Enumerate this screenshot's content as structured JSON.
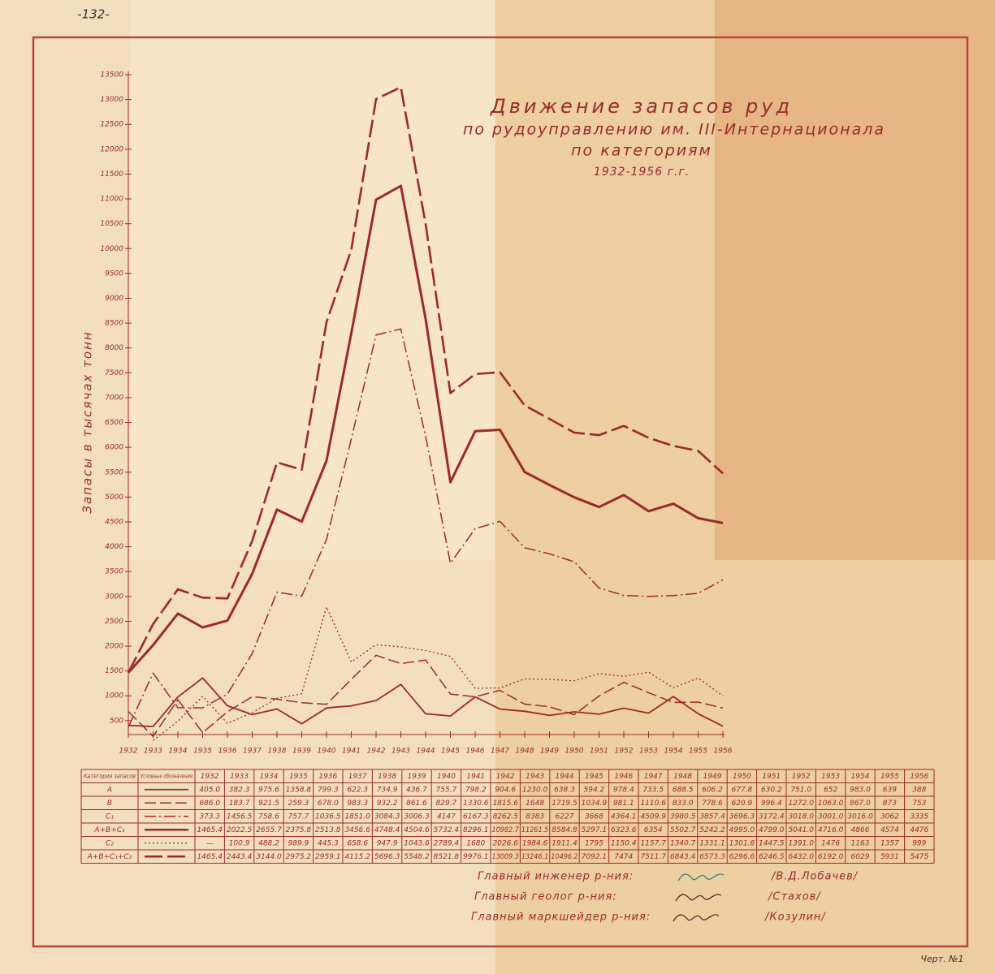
{
  "page_number": "-132-",
  "sheet": "Черт. №1",
  "chart_data": {
    "type": "line",
    "title": "Движение запасов руд",
    "subtitle": [
      "по рудоуправлению им. III-Интернационала",
      "по категориям",
      "1932-1956 г.г."
    ],
    "ylabel": "Запасы в тысячах тонн",
    "x": [
      "1932",
      "1933",
      "1934",
      "1935",
      "1936",
      "1937",
      "1938",
      "1939",
      "1940",
      "1941",
      "1942",
      "1943",
      "1944",
      "1945",
      "1946",
      "1947",
      "1948",
      "1949",
      "1950",
      "1951",
      "1952",
      "1953",
      "1954",
      "1955",
      "1956"
    ],
    "ylim": [
      220,
      13500
    ],
    "yticks": [
      500,
      1000,
      1500,
      2000,
      2500,
      3000,
      3500,
      4000,
      4500,
      5000,
      5500,
      6000,
      6500,
      7000,
      7500,
      8000,
      8500,
      9000,
      9500,
      10000,
      10500,
      11000,
      11500,
      12000,
      12500,
      13000,
      13500
    ],
    "series": [
      {
        "name": "A",
        "color": "#9b2a2a",
        "dash": "none",
        "width": 1.8,
        "values": [
          405.0,
          382.3,
          975.6,
          1358.8,
          799.3,
          622.3,
          734.9,
          436.7,
          755.7,
          798.2,
          904.6,
          1230.0,
          638.3,
          594.2,
          978.4,
          733.5,
          688.5,
          606.2,
          677.8,
          630.2,
          751.0,
          652,
          983.0,
          639,
          388
        ],
        "value_labels": [
          "405.0",
          "382.3",
          "975.6",
          "1358.8",
          "799.3",
          "622.3",
          "734.9",
          "436.7",
          "755.7",
          "798.2",
          "904.6",
          "1230.0",
          "638.3",
          "594.2",
          "978.4",
          "733.5",
          "688.5",
          "606.2",
          "677.8",
          "630.2",
          "751.0",
          "652",
          "983.0",
          "639",
          "388"
        ]
      },
      {
        "name": "B",
        "color": "#9b2a2a",
        "dash": "14 5",
        "width": 1.5,
        "values": [
          686.0,
          183.7,
          921.5,
          259.3,
          678.0,
          983.3,
          932.2,
          861.6,
          829.7,
          1330.6,
          1815.6,
          1648,
          1719.5,
          1034.9,
          981.1,
          1110.6,
          833.0,
          778.6,
          620.9,
          996.4,
          1272.0,
          1063.0,
          867.0,
          873,
          753
        ],
        "value_labels": [
          "686.0",
          "183.7",
          "921.5",
          "259.3",
          "678.0",
          "983.3",
          "932.2",
          "861.6",
          "829.7",
          "1330.6",
          "1815.6",
          "1648",
          "1719.5",
          "1034.9",
          "981.1",
          "1110.6",
          "833.0",
          "778.6",
          "620.9",
          "996.4",
          "1272.0",
          "1063.0",
          "867.0",
          "873",
          "753"
        ]
      },
      {
        "name": "C₁",
        "color": "#9b2a2a",
        "dash": "14 4 2 4",
        "width": 1.5,
        "values": [
          373.3,
          1456.5,
          758.6,
          757.7,
          1036.5,
          1851.0,
          3084.3,
          3006.3,
          4147,
          6167.3,
          8262.5,
          8383,
          6227,
          3668,
          4364.1,
          4509.9,
          3980.5,
          3857.4,
          3696.3,
          3172.4,
          3018.0,
          3001.0,
          3016.0,
          3062,
          3335
        ],
        "value_labels": [
          "373.3",
          "1456.5",
          "758.6",
          "757.7",
          "1036.5",
          "1851.0",
          "3084.3",
          "3006.3",
          "4147",
          "6167.3",
          "8262.5",
          "8383",
          "6227",
          "3668",
          "4364.1",
          "4509.9",
          "3980.5",
          "3857.4",
          "3696.3",
          "3172.4",
          "3018.0",
          "3001.0",
          "3016.0",
          "3062",
          "3335"
        ]
      },
      {
        "name": "A+B+C₁",
        "color": "#9b2a2a",
        "dash": "none",
        "width": 3,
        "values": [
          1465.4,
          2022.5,
          2655.7,
          2375.8,
          2513.8,
          3456.6,
          4748.4,
          4504.6,
          5732.4,
          8296.1,
          10982.7,
          11261.5,
          8584.8,
          5297.1,
          6323.6,
          6354,
          5502.7,
          5242.2,
          4995.0,
          4799.0,
          5041.0,
          4716.0,
          4866,
          4574,
          4476
        ],
        "value_labels": [
          "1465.4",
          "2022.5",
          "2655.7",
          "2375.8",
          "2513.8",
          "3456.6",
          "4748.4",
          "4504.6",
          "5732.4",
          "8296.1",
          "10982.7",
          "11261.5",
          "8584.8",
          "5297.1",
          "6323.6",
          "6354",
          "5502.7",
          "5242.2",
          "4995.0",
          "4799.0",
          "5041.0",
          "4716.0",
          "4866",
          "4574",
          "4476"
        ]
      },
      {
        "name": "C₂",
        "color": "#9b2a2a",
        "dash": "2 3",
        "width": 1.3,
        "values": [
          null,
          100.9,
          488.2,
          989.9,
          445.3,
          658.6,
          947.9,
          1043.6,
          2789.4,
          1680,
          2026.6,
          1984.6,
          1911.4,
          1795,
          1150.4,
          1157.7,
          1340.7,
          1331.1,
          1301.6,
          1447.5,
          1391.0,
          1476,
          1163,
          1357,
          999
        ],
        "value_labels": [
          "—",
          "100.9",
          "488.2",
          "989.9",
          "445.3",
          "658.6",
          "947.9",
          "1043.6",
          "2789.4",
          "1680",
          "2026.6",
          "1984.6",
          "1911.4",
          "1795",
          "1150.4",
          "1157.7",
          "1340.7",
          "1331.1",
          "1301.6",
          "1447.5",
          "1391.0",
          "1476",
          "1163",
          "1357",
          "999"
        ]
      },
      {
        "name": "A+B+C₁+C₂",
        "color": "#9b2a2a",
        "dash": "22 6",
        "width": 2.6,
        "values": [
          1465.4,
          2443.4,
          3144.0,
          2975.2,
          2959.1,
          4115.2,
          5696.3,
          5548.2,
          8521.8,
          9976.1,
          13009.3,
          13246.1,
          10496.2,
          7092.1,
          7474,
          7511.7,
          6843.4,
          6573.3,
          6296.6,
          6246.5,
          6432.0,
          6192.0,
          6029,
          5931,
          5475
        ],
        "value_labels": [
          "1465.4",
          "2443.4",
          "3144.0",
          "2975.2",
          "2959.1",
          "4115.2",
          "5696.3",
          "5548.2",
          "8521.8",
          "9976.1",
          "13009.3",
          "13246.1",
          "10496.2",
          "7092.1",
          "7474",
          "7511.7",
          "6843.4",
          "6573.3",
          "6296.6",
          "6246.5",
          "6432.0",
          "6192.0",
          "6029",
          "5931",
          "5475"
        ]
      }
    ]
  },
  "table": {
    "headers": [
      "Категория запасов",
      "Условные обозначения"
    ]
  },
  "signatures": [
    {
      "role": "Главный инженер р-ния:",
      "name": "/В.Д.Лобачев/"
    },
    {
      "role": "Главный геолог р-ния:",
      "name": "/Стахов/"
    },
    {
      "role": "Главный маркшейдер р-ния:",
      "name": "/Козулин/"
    }
  ]
}
